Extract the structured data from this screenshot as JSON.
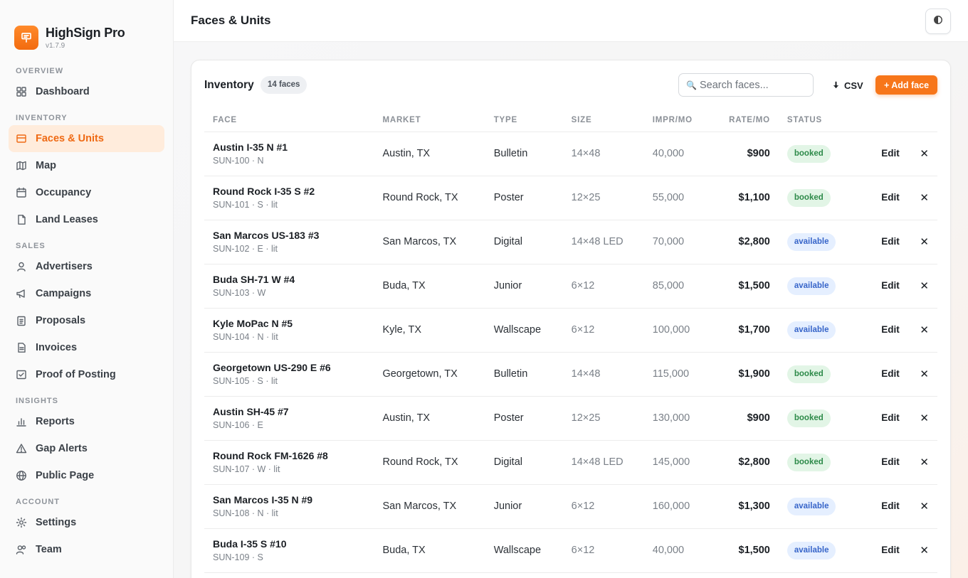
{
  "app": {
    "name": "HighSign Pro",
    "version": "v1.7.9"
  },
  "sidebar": {
    "sections": [
      {
        "title": "OVERVIEW",
        "items": [
          {
            "label": "Dashboard",
            "icon": "dashboard-icon"
          }
        ]
      },
      {
        "title": "INVENTORY",
        "items": [
          {
            "label": "Faces & Units",
            "icon": "faces-icon",
            "active": true
          },
          {
            "label": "Map",
            "icon": "map-icon"
          },
          {
            "label": "Occupancy",
            "icon": "calendar-icon"
          },
          {
            "label": "Land Leases",
            "icon": "document-icon"
          }
        ]
      },
      {
        "title": "SALES",
        "items": [
          {
            "label": "Advertisers",
            "icon": "user-icon"
          },
          {
            "label": "Campaigns",
            "icon": "megaphone-icon"
          },
          {
            "label": "Proposals",
            "icon": "clipboard-icon"
          },
          {
            "label": "Invoices",
            "icon": "invoice-icon"
          },
          {
            "label": "Proof of Posting",
            "icon": "checkbox-icon"
          }
        ]
      },
      {
        "title": "INSIGHTS",
        "items": [
          {
            "label": "Reports",
            "icon": "bar-chart-icon"
          },
          {
            "label": "Gap Alerts",
            "icon": "warning-icon"
          },
          {
            "label": "Public Page",
            "icon": "globe-icon"
          }
        ]
      },
      {
        "title": "ACCOUNT",
        "items": [
          {
            "label": "Settings",
            "icon": "gear-icon"
          },
          {
            "label": "Team",
            "icon": "team-icon"
          }
        ]
      }
    ]
  },
  "header": {
    "title": "Faces & Units",
    "theme_toggle_icon": "contrast-icon"
  },
  "inventory": {
    "title": "Inventory",
    "count_label": "14 faces",
    "search_placeholder": "Search faces...",
    "csv_label": "CSV",
    "add_label": "+ Add face",
    "columns": [
      "FACE",
      "MARKET",
      "TYPE",
      "SIZE",
      "IMPR/MO",
      "RATE/MO",
      "STATUS"
    ],
    "edit_label": "Edit",
    "delete_symbol": "✕",
    "rows": [
      {
        "name": "Austin I-35 N #1",
        "code": "SUN-100 · N",
        "market": "Austin, TX",
        "type": "Bulletin",
        "size": "14×48",
        "impr": "40,000",
        "rate": "$900",
        "status": "booked"
      },
      {
        "name": "Round Rock I-35 S #2",
        "code": "SUN-101 · S · lit",
        "market": "Round Rock, TX",
        "type": "Poster",
        "size": "12×25",
        "impr": "55,000",
        "rate": "$1,100",
        "status": "booked"
      },
      {
        "name": "San Marcos US-183 #3",
        "code": "SUN-102 · E · lit",
        "market": "San Marcos, TX",
        "type": "Digital",
        "size": "14×48 LED",
        "impr": "70,000",
        "rate": "$2,800",
        "status": "available"
      },
      {
        "name": "Buda SH-71 W #4",
        "code": "SUN-103 · W",
        "market": "Buda, TX",
        "type": "Junior",
        "size": "6×12",
        "impr": "85,000",
        "rate": "$1,500",
        "status": "available"
      },
      {
        "name": "Kyle MoPac N #5",
        "code": "SUN-104 · N · lit",
        "market": "Kyle, TX",
        "type": "Wallscape",
        "size": "6×12",
        "impr": "100,000",
        "rate": "$1,700",
        "status": "available"
      },
      {
        "name": "Georgetown US-290 E #6",
        "code": "SUN-105 · S · lit",
        "market": "Georgetown, TX",
        "type": "Bulletin",
        "size": "14×48",
        "impr": "115,000",
        "rate": "$1,900",
        "status": "booked"
      },
      {
        "name": "Austin SH-45 #7",
        "code": "SUN-106 · E",
        "market": "Austin, TX",
        "type": "Poster",
        "size": "12×25",
        "impr": "130,000",
        "rate": "$900",
        "status": "booked"
      },
      {
        "name": "Round Rock FM-1626 #8",
        "code": "SUN-107 · W · lit",
        "market": "Round Rock, TX",
        "type": "Digital",
        "size": "14×48 LED",
        "impr": "145,000",
        "rate": "$2,800",
        "status": "booked"
      },
      {
        "name": "San Marcos I-35 N #9",
        "code": "SUN-108 · N · lit",
        "market": "San Marcos, TX",
        "type": "Junior",
        "size": "6×12",
        "impr": "160,000",
        "rate": "$1,300",
        "status": "available"
      },
      {
        "name": "Buda I-35 S #10",
        "code": "SUN-109 · S",
        "market": "Buda, TX",
        "type": "Wallscape",
        "size": "6×12",
        "impr": "40,000",
        "rate": "$1,500",
        "status": "available"
      }
    ]
  },
  "colors": {
    "accent": "#f7761a",
    "booked_bg": "#e2f5e6",
    "booked_text": "#2d8a49",
    "available_bg": "#e5efff",
    "available_text": "#3765c9"
  }
}
